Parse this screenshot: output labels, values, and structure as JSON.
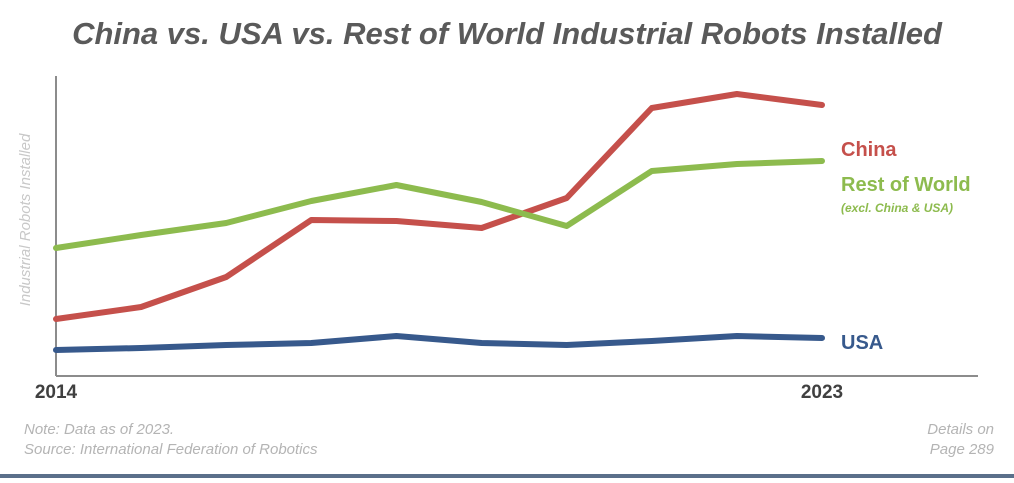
{
  "chart_data": {
    "type": "line",
    "title": "China vs. USA vs. Rest of World Industrial Robots Installed",
    "ylabel": "Industrial Robots Installed",
    "xlabel": "",
    "x": [
      2014,
      2015,
      2016,
      2017,
      2018,
      2019,
      2020,
      2021,
      2022,
      2023
    ],
    "x_tick_labels": [
      "2014",
      "2023"
    ],
    "ylim": [
      0,
      300
    ],
    "y_ticks_shown": false,
    "grid": false,
    "series": [
      {
        "name": "China",
        "color": "#c5504b",
        "values": [
          57,
          69,
          99,
          156,
          155,
          148,
          178,
          268,
          282,
          271
        ]
      },
      {
        "name": "Rest of World",
        "sublabel": "(excl. China & USA)",
        "color": "#8dbb4e",
        "values": [
          128,
          141,
          153,
          175,
          191,
          174,
          150,
          205,
          212,
          215
        ]
      },
      {
        "name": "USA",
        "color": "#37598c",
        "values": [
          26,
          28,
          31,
          33,
          40,
          33,
          31,
          35,
          40,
          38
        ]
      }
    ],
    "legend_placement": "right end of each line"
  },
  "footer": {
    "note": "Note: Data as of 2023.",
    "source": "Source: International Federation of Robotics",
    "details_line1": "Details on",
    "details_line2": "Page 289"
  },
  "colors": {
    "title": "#5a5a5a",
    "axis_title": "#c8c8c8",
    "axis_line": "#8c8c8c",
    "tick_label": "#404040",
    "footnote": "#b4b4b4",
    "bottom_bar": "#5b6f8a"
  }
}
